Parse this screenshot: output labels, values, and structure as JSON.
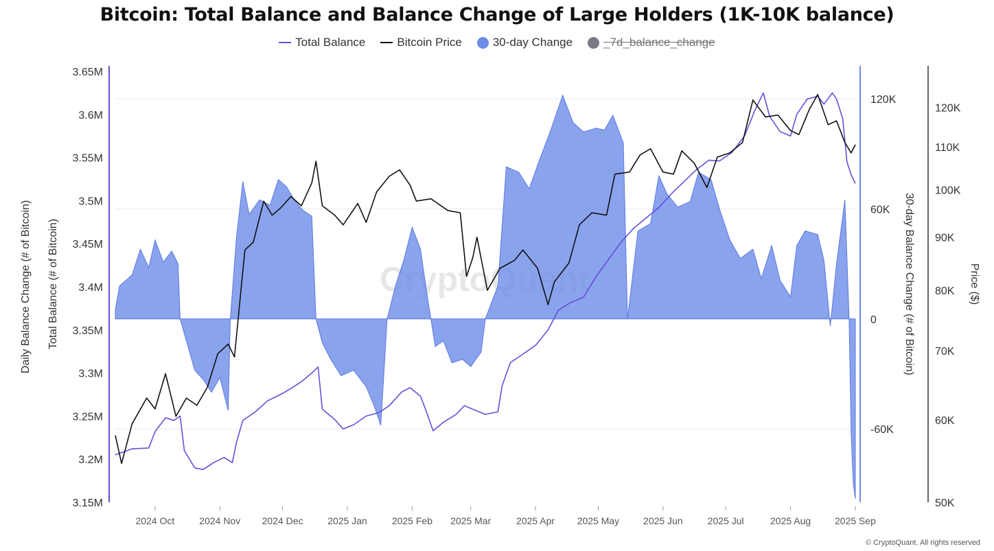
{
  "title": "Bitcoin: Total Balance and Balance Change of Large Holders (1K-10K balance)",
  "legend": [
    {
      "label": "Total Balance",
      "kind": "line",
      "color": "#6450d8"
    },
    {
      "label": "Bitcoin Price",
      "kind": "line",
      "color": "#111111"
    },
    {
      "label": "30-day Change",
      "kind": "dot",
      "color": "#6d8ce8"
    },
    {
      "label": "_7d_balance_change",
      "kind": "dot-disabled",
      "color": "#7a7a85"
    }
  ],
  "watermark": "CryptoQuant",
  "copyright": "© CryptoQuant. All rights reserved",
  "axes": {
    "left_outer_label": "Daily Balance Change (# of Bitcoin)",
    "left_inner_label": "Total Balance (# of Bitcoin)",
    "right_inner_label": "30-day Balance Change (# of Bitcoin)",
    "right_outer_label": "Price ($)"
  },
  "chart_data": {
    "type": "line",
    "x_type": "date",
    "x_range": [
      "2024-09-12",
      "2025-09-01"
    ],
    "x_tick_labels": [
      "2024 Oct",
      "2024 Nov",
      "2024 Dec",
      "2025 Jan",
      "2025 Feb",
      "2025 Mar",
      "2025 Apr",
      "2025 May",
      "2025 Jun",
      "2025 Jul",
      "2025 Aug",
      "2025 Sep"
    ],
    "x_tick_dates": [
      "2024-10-01",
      "2024-11-01",
      "2024-12-01",
      "2025-01-01",
      "2025-02-01",
      "2025-03-01",
      "2025-04-01",
      "2025-05-01",
      "2025-06-01",
      "2025-07-01",
      "2025-08-01",
      "2025-09-01"
    ],
    "y_left": {
      "min": 3150000,
      "max": 3650000,
      "ticks": [
        3150000,
        3200000,
        3250000,
        3300000,
        3350000,
        3400000,
        3450000,
        3500000,
        3550000,
        3600000,
        3650000
      ],
      "tick_labels": [
        "3.15M",
        "3.2M",
        "3.25M",
        "3.3M",
        "3.35M",
        "3.4M",
        "3.45M",
        "3.5M",
        "3.55M",
        "3.6M",
        "3.65M"
      ]
    },
    "y_change": {
      "min": -100000,
      "max": 135000,
      "ticks": [
        -60000,
        0,
        60000,
        120000
      ],
      "tick_labels": [
        "-60K",
        "0",
        "60K",
        "120K"
      ]
    },
    "y_price": {
      "min": 50000,
      "max": 130000,
      "scale": "log",
      "ticks": [
        50000,
        60000,
        70000,
        80000,
        90000,
        100000,
        110000,
        120000
      ],
      "tick_labels": [
        "50K",
        "60K",
        "70K",
        "80K",
        "90K",
        "100K",
        "110K",
        "120K"
      ]
    },
    "series": [
      {
        "name": "Total Balance",
        "axis": "left",
        "color": "#6450d8",
        "points": [
          [
            "2024-09-12",
            3205000
          ],
          [
            "2024-09-20",
            3212000
          ],
          [
            "2024-09-28",
            3213000
          ],
          [
            "2024-10-01",
            3232000
          ],
          [
            "2024-10-06",
            3248000
          ],
          [
            "2024-10-10",
            3245000
          ],
          [
            "2024-10-13",
            3250000
          ],
          [
            "2024-10-15",
            3210000
          ],
          [
            "2024-10-20",
            3190000
          ],
          [
            "2024-10-24",
            3188000
          ],
          [
            "2024-10-29",
            3196000
          ],
          [
            "2024-11-03",
            3202000
          ],
          [
            "2024-11-07",
            3196000
          ],
          [
            "2024-11-09",
            3220000
          ],
          [
            "2024-11-12",
            3245000
          ],
          [
            "2024-11-18",
            3255000
          ],
          [
            "2024-11-24",
            3268000
          ],
          [
            "2024-11-30",
            3275000
          ],
          [
            "2024-12-05",
            3282000
          ],
          [
            "2024-12-10",
            3290000
          ],
          [
            "2024-12-15",
            3300000
          ],
          [
            "2024-12-18",
            3307000
          ],
          [
            "2024-12-20",
            3258000
          ],
          [
            "2024-12-26",
            3246000
          ],
          [
            "2024-12-30",
            3235000
          ],
          [
            "2025-01-04",
            3240000
          ],
          [
            "2025-01-10",
            3250000
          ],
          [
            "2025-01-16",
            3254000
          ],
          [
            "2025-01-21",
            3262000
          ],
          [
            "2025-01-27",
            3278000
          ],
          [
            "2025-01-31",
            3283000
          ],
          [
            "2025-02-05",
            3273000
          ],
          [
            "2025-02-08",
            3254000
          ],
          [
            "2025-02-11",
            3233000
          ],
          [
            "2025-02-16",
            3243000
          ],
          [
            "2025-02-22",
            3252000
          ],
          [
            "2025-02-26",
            3262000
          ],
          [
            "2025-03-03",
            3257000
          ],
          [
            "2025-03-08",
            3252000
          ],
          [
            "2025-03-14",
            3255000
          ],
          [
            "2025-03-16",
            3285000
          ],
          [
            "2025-03-20",
            3312000
          ],
          [
            "2025-03-26",
            3322000
          ],
          [
            "2025-04-01",
            3332000
          ],
          [
            "2025-04-07",
            3350000
          ],
          [
            "2025-04-12",
            3373000
          ],
          [
            "2025-04-18",
            3382000
          ],
          [
            "2025-04-24",
            3388000
          ],
          [
            "2025-04-30",
            3412000
          ],
          [
            "2025-05-06",
            3432000
          ],
          [
            "2025-05-12",
            3452000
          ],
          [
            "2025-05-18",
            3468000
          ],
          [
            "2025-05-24",
            3480000
          ],
          [
            "2025-05-30",
            3492000
          ],
          [
            "2025-06-05",
            3508000
          ],
          [
            "2025-06-11",
            3522000
          ],
          [
            "2025-06-17",
            3536000
          ],
          [
            "2025-06-23",
            3547000
          ],
          [
            "2025-06-28",
            3546000
          ],
          [
            "2025-07-04",
            3556000
          ],
          [
            "2025-07-10",
            3575000
          ],
          [
            "2025-07-15",
            3605000
          ],
          [
            "2025-07-19",
            3625000
          ],
          [
            "2025-07-22",
            3598000
          ],
          [
            "2025-07-27",
            3580000
          ],
          [
            "2025-08-01",
            3575000
          ],
          [
            "2025-08-04",
            3600000
          ],
          [
            "2025-08-09",
            3618000
          ],
          [
            "2025-08-14",
            3621000
          ],
          [
            "2025-08-17",
            3612000
          ],
          [
            "2025-08-21",
            3625000
          ],
          [
            "2025-08-23",
            3618000
          ],
          [
            "2025-08-26",
            3595000
          ],
          [
            "2025-08-28",
            3545000
          ],
          [
            "2025-08-30",
            3530000
          ],
          [
            "2025-09-01",
            3520000
          ]
        ]
      },
      {
        "name": "Bitcoin Price",
        "axis": "price",
        "color": "#111111",
        "points": [
          [
            "2024-09-12",
            58000
          ],
          [
            "2024-09-15",
            54500
          ],
          [
            "2024-09-20",
            59500
          ],
          [
            "2024-09-27",
            63000
          ],
          [
            "2024-10-01",
            61500
          ],
          [
            "2024-10-06",
            66500
          ],
          [
            "2024-10-11",
            60500
          ],
          [
            "2024-10-16",
            63000
          ],
          [
            "2024-10-21",
            62000
          ],
          [
            "2024-10-26",
            64500
          ],
          [
            "2024-10-31",
            69500
          ],
          [
            "2024-11-05",
            71000
          ],
          [
            "2024-11-08",
            69000
          ],
          [
            "2024-11-10",
            76000
          ],
          [
            "2024-11-13",
            87500
          ],
          [
            "2024-11-17",
            89000
          ],
          [
            "2024-11-22",
            97500
          ],
          [
            "2024-11-26",
            94500
          ],
          [
            "2024-11-30",
            96000
          ],
          [
            "2024-12-05",
            98500
          ],
          [
            "2024-12-10",
            96500
          ],
          [
            "2024-12-15",
            101500
          ],
          [
            "2024-12-17",
            106500
          ],
          [
            "2024-12-20",
            96500
          ],
          [
            "2024-12-26",
            94500
          ],
          [
            "2024-12-30",
            92500
          ],
          [
            "2025-01-06",
            97000
          ],
          [
            "2025-01-10",
            93000
          ],
          [
            "2025-01-15",
            99500
          ],
          [
            "2025-01-21",
            103000
          ],
          [
            "2025-01-26",
            104500
          ],
          [
            "2025-01-31",
            101000
          ],
          [
            "2025-02-03",
            97500
          ],
          [
            "2025-02-10",
            98000
          ],
          [
            "2025-02-18",
            95500
          ],
          [
            "2025-02-24",
            95000
          ],
          [
            "2025-02-27",
            82500
          ],
          [
            "2025-03-02",
            86000
          ],
          [
            "2025-03-04",
            90000
          ],
          [
            "2025-03-09",
            80000
          ],
          [
            "2025-03-15",
            84000
          ],
          [
            "2025-03-22",
            85500
          ],
          [
            "2025-03-26",
            87500
          ],
          [
            "2025-04-02",
            84000
          ],
          [
            "2025-04-07",
            77500
          ],
          [
            "2025-04-10",
            81500
          ],
          [
            "2025-04-17",
            85000
          ],
          [
            "2025-04-22",
            92500
          ],
          [
            "2025-04-28",
            95000
          ],
          [
            "2025-05-05",
            94500
          ],
          [
            "2025-05-09",
            103500
          ],
          [
            "2025-05-16",
            104000
          ],
          [
            "2025-05-21",
            108000
          ],
          [
            "2025-05-26",
            109500
          ],
          [
            "2025-06-01",
            104000
          ],
          [
            "2025-06-06",
            103500
          ],
          [
            "2025-06-10",
            109000
          ],
          [
            "2025-06-16",
            106000
          ],
          [
            "2025-06-22",
            100500
          ],
          [
            "2025-06-27",
            107500
          ],
          [
            "2025-07-03",
            108500
          ],
          [
            "2025-07-09",
            111000
          ],
          [
            "2025-07-14",
            122000
          ],
          [
            "2025-07-20",
            117500
          ],
          [
            "2025-07-26",
            118000
          ],
          [
            "2025-08-01",
            114000
          ],
          [
            "2025-08-05",
            113000
          ],
          [
            "2025-08-10",
            119500
          ],
          [
            "2025-08-14",
            123500
          ],
          [
            "2025-08-19",
            115500
          ],
          [
            "2025-08-23",
            116500
          ],
          [
            "2025-08-27",
            111000
          ],
          [
            "2025-08-30",
            108500
          ],
          [
            "2025-09-01",
            110500
          ]
        ]
      },
      {
        "name": "30-day Change",
        "axis": "change",
        "color": "#6d8ce8",
        "type": "area",
        "points": [
          [
            "2024-09-12",
            5000
          ],
          [
            "2024-09-14",
            18000
          ],
          [
            "2024-09-20",
            24000
          ],
          [
            "2024-09-24",
            38000
          ],
          [
            "2024-09-28",
            28000
          ],
          [
            "2024-10-01",
            43000
          ],
          [
            "2024-10-05",
            31000
          ],
          [
            "2024-10-09",
            37000
          ],
          [
            "2024-10-12",
            30000
          ],
          [
            "2024-10-13",
            0
          ],
          [
            "2024-10-16",
            -12000
          ],
          [
            "2024-10-20",
            -28000
          ],
          [
            "2024-10-24",
            -33000
          ],
          [
            "2024-10-28",
            -40000
          ],
          [
            "2024-11-01",
            -32000
          ],
          [
            "2024-11-05",
            -50000
          ],
          [
            "2024-11-06",
            0
          ],
          [
            "2024-11-09",
            45000
          ],
          [
            "2024-11-12",
            75000
          ],
          [
            "2024-11-15",
            57000
          ],
          [
            "2024-11-20",
            65000
          ],
          [
            "2024-11-25",
            62000
          ],
          [
            "2024-11-29",
            76000
          ],
          [
            "2024-12-03",
            72000
          ],
          [
            "2024-12-07",
            64000
          ],
          [
            "2024-12-11",
            59000
          ],
          [
            "2024-12-15",
            56000
          ],
          [
            "2024-12-17",
            0
          ],
          [
            "2024-12-20",
            -13000
          ],
          [
            "2024-12-24",
            -22000
          ],
          [
            "2024-12-29",
            -31000
          ],
          [
            "2025-01-04",
            -28000
          ],
          [
            "2025-01-10",
            -37000
          ],
          [
            "2025-01-14",
            -48000
          ],
          [
            "2025-01-17",
            -58000
          ],
          [
            "2025-01-20",
            0
          ],
          [
            "2025-01-24",
            18000
          ],
          [
            "2025-01-28",
            32000
          ],
          [
            "2025-02-01",
            50000
          ],
          [
            "2025-02-05",
            38000
          ],
          [
            "2025-02-08",
            14000
          ],
          [
            "2025-02-10",
            0
          ],
          [
            "2025-02-12",
            -15000
          ],
          [
            "2025-02-16",
            -12000
          ],
          [
            "2025-02-20",
            -24000
          ],
          [
            "2025-02-25",
            -22000
          ],
          [
            "2025-03-01",
            -26000
          ],
          [
            "2025-03-06",
            -18000
          ],
          [
            "2025-03-08",
            0
          ],
          [
            "2025-03-14",
            18000
          ],
          [
            "2025-03-18",
            83000
          ],
          [
            "2025-03-24",
            80000
          ],
          [
            "2025-03-29",
            71000
          ],
          [
            "2025-04-03",
            87000
          ],
          [
            "2025-04-08",
            102000
          ],
          [
            "2025-04-14",
            122000
          ],
          [
            "2025-04-19",
            107000
          ],
          [
            "2025-04-24",
            102000
          ],
          [
            "2025-04-30",
            104000
          ],
          [
            "2025-05-04",
            103000
          ],
          [
            "2025-05-08",
            111000
          ],
          [
            "2025-05-13",
            96000
          ],
          [
            "2025-05-15",
            0
          ],
          [
            "2025-05-20",
            48000
          ],
          [
            "2025-05-26",
            52000
          ],
          [
            "2025-05-30",
            78000
          ],
          [
            "2025-06-03",
            68000
          ],
          [
            "2025-06-08",
            61000
          ],
          [
            "2025-06-14",
            64000
          ],
          [
            "2025-06-18",
            80000
          ],
          [
            "2025-06-24",
            76000
          ],
          [
            "2025-06-28",
            60000
          ],
          [
            "2025-07-03",
            43000
          ],
          [
            "2025-07-08",
            33000
          ],
          [
            "2025-07-14",
            38000
          ],
          [
            "2025-07-18",
            22000
          ],
          [
            "2025-07-23",
            40000
          ],
          [
            "2025-07-27",
            21000
          ],
          [
            "2025-08-01",
            12000
          ],
          [
            "2025-08-04",
            40000
          ],
          [
            "2025-08-08",
            48000
          ],
          [
            "2025-08-14",
            46000
          ],
          [
            "2025-08-17",
            32000
          ],
          [
            "2025-08-20",
            -4000
          ],
          [
            "2025-08-23",
            30000
          ],
          [
            "2025-08-27",
            65000
          ],
          [
            "2025-08-29",
            0
          ],
          [
            "2025-08-30",
            -62000
          ],
          [
            "2025-08-31",
            -90000
          ],
          [
            "2025-09-01",
            -98000
          ]
        ]
      }
    ]
  }
}
